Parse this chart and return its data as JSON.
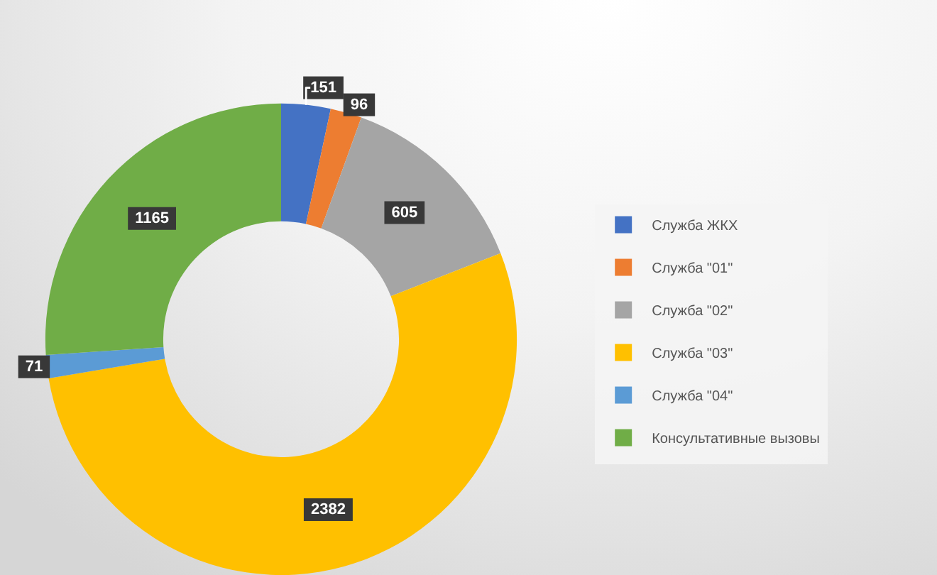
{
  "chart_data": {
    "type": "donut",
    "categories": [
      "Служба ЖКХ",
      "Служба \"01\"",
      "Служба \"02\"",
      "Служба \"03\"",
      "Служба \"04\"",
      "Консультативные вызовы"
    ],
    "values": [
      151,
      96,
      605,
      2382,
      71,
      1165
    ],
    "colors": [
      "#4472c4",
      "#ed7d31",
      "#a5a5a5",
      "#ffc000",
      "#5b9bd5",
      "#70ad47"
    ],
    "data_labels": true,
    "legend": "right"
  }
}
